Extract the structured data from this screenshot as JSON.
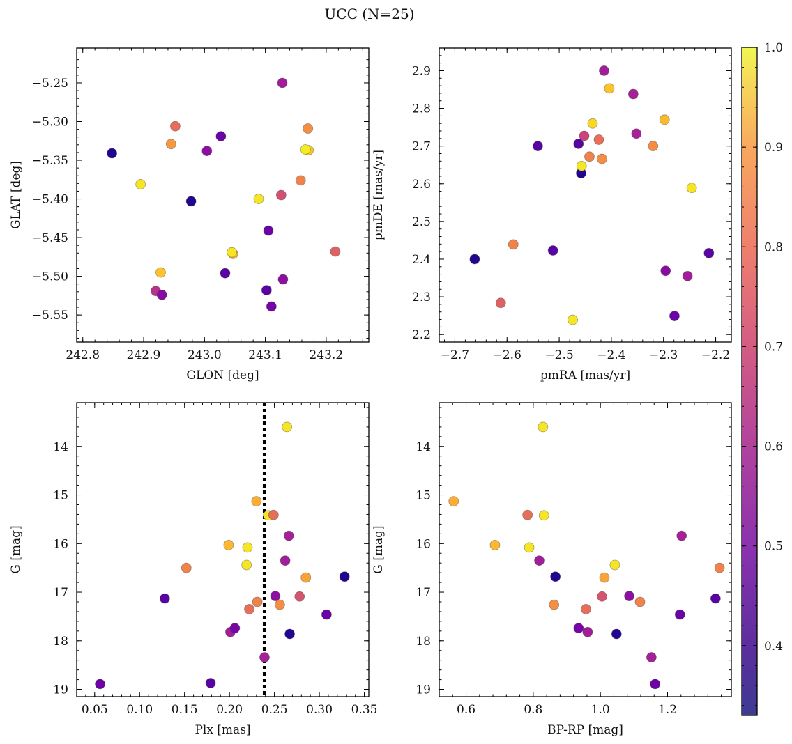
{
  "figure": {
    "title": "UCC (N=25)",
    "colorbar": {
      "colormap": "plasma",
      "range": [
        0.33,
        1.0
      ],
      "ticks": [
        0.4,
        0.5,
        0.6,
        0.7,
        0.8,
        0.9,
        1.0
      ],
      "tick_labels": [
        "0.4",
        "0.5",
        "0.6",
        "0.7",
        "0.8",
        "0.9",
        "1.0"
      ]
    }
  },
  "chart_data": [
    {
      "type": "scatter",
      "xlabel": "GLON [deg]",
      "ylabel": "GLAT [deg]",
      "xlim": [
        242.79,
        243.27
      ],
      "ylim": [
        -5.585,
        -5.205
      ],
      "y_inverted": false,
      "xticks": [
        242.8,
        242.9,
        243.0,
        243.1,
        243.2
      ],
      "xtick_labels": [
        "242.8",
        "242.9",
        "243.0",
        "243.1",
        "243.2"
      ],
      "yticks": [
        -5.25,
        -5.3,
        -5.35,
        -5.4,
        -5.45,
        -5.5,
        -5.55
      ],
      "ytick_labels": [
        "−5.25",
        "−5.30",
        "−5.35",
        "−5.40",
        "−5.45",
        "−5.50",
        "−5.55"
      ],
      "points": [
        {
          "x": 242.848,
          "y": -5.341,
          "c": 0.36
        },
        {
          "x": 242.895,
          "y": -5.381,
          "c": 0.97
        },
        {
          "x": 242.945,
          "y": -5.329,
          "c": 0.84
        },
        {
          "x": 242.952,
          "y": -5.306,
          "c": 0.76
        },
        {
          "x": 242.928,
          "y": -5.495,
          "c": 0.92
        },
        {
          "x": 242.92,
          "y": -5.519,
          "c": 0.62
        },
        {
          "x": 242.93,
          "y": -5.524,
          "c": 0.52
        },
        {
          "x": 242.978,
          "y": -5.403,
          "c": 0.36
        },
        {
          "x": 243.004,
          "y": -5.338,
          "c": 0.53
        },
        {
          "x": 243.027,
          "y": -5.319,
          "c": 0.47
        },
        {
          "x": 243.034,
          "y": -5.496,
          "c": 0.44
        },
        {
          "x": 243.047,
          "y": -5.471,
          "c": 0.88
        },
        {
          "x": 243.045,
          "y": -5.469,
          "c": 0.97
        },
        {
          "x": 243.089,
          "y": -5.4,
          "c": 0.97
        },
        {
          "x": 243.105,
          "y": -5.441,
          "c": 0.47
        },
        {
          "x": 243.102,
          "y": -5.518,
          "c": 0.44
        },
        {
          "x": 243.11,
          "y": -5.539,
          "c": 0.49
        },
        {
          "x": 243.128,
          "y": -5.25,
          "c": 0.57
        },
        {
          "x": 243.126,
          "y": -5.395,
          "c": 0.69
        },
        {
          "x": 243.129,
          "y": -5.504,
          "c": 0.53
        },
        {
          "x": 243.158,
          "y": -5.376,
          "c": 0.8
        },
        {
          "x": 243.17,
          "y": -5.309,
          "c": 0.82
        },
        {
          "x": 243.171,
          "y": -5.337,
          "c": 0.92
        },
        {
          "x": 243.166,
          "y": -5.336,
          "c": 0.98
        },
        {
          "x": 243.215,
          "y": -5.468,
          "c": 0.73
        }
      ]
    },
    {
      "type": "scatter",
      "xlabel": "pmRA [mas/yr]",
      "ylabel": "pmDE [mas/yr]",
      "xlim": [
        -2.73,
        -2.17
      ],
      "ylim": [
        2.18,
        2.96
      ],
      "y_inverted": false,
      "xticks": [
        -2.7,
        -2.6,
        -2.5,
        -2.4,
        -2.3,
        -2.2
      ],
      "xtick_labels": [
        "−2.7",
        "−2.6",
        "−2.5",
        "−2.4",
        "−2.3",
        "−2.2"
      ],
      "yticks": [
        2.2,
        2.3,
        2.4,
        2.5,
        2.6,
        2.7,
        2.8,
        2.9
      ],
      "ytick_labels": [
        "2.2",
        "2.3",
        "2.4",
        "2.5",
        "2.6",
        "2.7",
        "2.8",
        "2.9"
      ],
      "points": [
        {
          "x": -2.662,
          "y": 2.4,
          "c": 0.36
        },
        {
          "x": -2.612,
          "y": 2.284,
          "c": 0.73
        },
        {
          "x": -2.588,
          "y": 2.439,
          "c": 0.8
        },
        {
          "x": -2.541,
          "y": 2.7,
          "c": 0.44
        },
        {
          "x": -2.512,
          "y": 2.423,
          "c": 0.44
        },
        {
          "x": -2.474,
          "y": 2.239,
          "c": 0.97
        },
        {
          "x": -2.463,
          "y": 2.706,
          "c": 0.44
        },
        {
          "x": -2.458,
          "y": 2.628,
          "c": 0.36
        },
        {
          "x": -2.457,
          "y": 2.647,
          "c": 0.97
        },
        {
          "x": -2.452,
          "y": 2.727,
          "c": 0.66
        },
        {
          "x": -2.442,
          "y": 2.672,
          "c": 0.8
        },
        {
          "x": -2.436,
          "y": 2.76,
          "c": 0.95
        },
        {
          "x": -2.424,
          "y": 2.717,
          "c": 0.76
        },
        {
          "x": -2.418,
          "y": 2.666,
          "c": 0.82
        },
        {
          "x": -2.414,
          "y": 2.9,
          "c": 0.57
        },
        {
          "x": -2.404,
          "y": 2.853,
          "c": 0.92
        },
        {
          "x": -2.358,
          "y": 2.838,
          "c": 0.58
        },
        {
          "x": -2.352,
          "y": 2.733,
          "c": 0.58
        },
        {
          "x": -2.32,
          "y": 2.7,
          "c": 0.82
        },
        {
          "x": -2.298,
          "y": 2.77,
          "c": 0.9
        },
        {
          "x": -2.296,
          "y": 2.369,
          "c": 0.52
        },
        {
          "x": -2.279,
          "y": 2.249,
          "c": 0.47
        },
        {
          "x": -2.254,
          "y": 2.355,
          "c": 0.57
        },
        {
          "x": -2.246,
          "y": 2.589,
          "c": 0.97
        },
        {
          "x": -2.213,
          "y": 2.416,
          "c": 0.44
        }
      ]
    },
    {
      "type": "scatter",
      "xlabel": "Plx [mas]",
      "ylabel": "G [mag]",
      "xlim": [
        0.03,
        0.355
      ],
      "ylim": [
        13.1,
        19.15
      ],
      "y_inverted": true,
      "reference_line": {
        "x": 0.239,
        "style": "dotted"
      },
      "xticks": [
        0.05,
        0.1,
        0.15,
        0.2,
        0.25,
        0.3,
        0.35
      ],
      "xtick_labels": [
        "0.05",
        "0.10",
        "0.15",
        "0.20",
        "0.25",
        "0.30",
        "0.35"
      ],
      "yticks": [
        14,
        15,
        16,
        17,
        18,
        19
      ],
      "ytick_labels": [
        "14",
        "15",
        "16",
        "17",
        "18",
        "19"
      ],
      "points": [
        {
          "x": 0.056,
          "y": 18.89,
          "c": 0.47
        },
        {
          "x": 0.128,
          "y": 17.13,
          "c": 0.44
        },
        {
          "x": 0.152,
          "y": 16.5,
          "c": 0.8
        },
        {
          "x": 0.179,
          "y": 18.87,
          "c": 0.44
        },
        {
          "x": 0.199,
          "y": 16.03,
          "c": 0.9
        },
        {
          "x": 0.201,
          "y": 17.82,
          "c": 0.57
        },
        {
          "x": 0.206,
          "y": 17.74,
          "c": 0.49
        },
        {
          "x": 0.219,
          "y": 16.44,
          "c": 0.97
        },
        {
          "x": 0.22,
          "y": 16.08,
          "c": 0.97
        },
        {
          "x": 0.222,
          "y": 17.35,
          "c": 0.76
        },
        {
          "x": 0.23,
          "y": 15.13,
          "c": 0.88
        },
        {
          "x": 0.231,
          "y": 17.2,
          "c": 0.8
        },
        {
          "x": 0.239,
          "y": 18.34,
          "c": 0.58
        },
        {
          "x": 0.243,
          "y": 15.42,
          "c": 0.97
        },
        {
          "x": 0.249,
          "y": 15.41,
          "c": 0.76
        },
        {
          "x": 0.251,
          "y": 17.08,
          "c": 0.53
        },
        {
          "x": 0.256,
          "y": 17.26,
          "c": 0.82
        },
        {
          "x": 0.262,
          "y": 16.35,
          "c": 0.57
        },
        {
          "x": 0.264,
          "y": 13.6,
          "c": 0.97
        },
        {
          "x": 0.266,
          "y": 15.84,
          "c": 0.58
        },
        {
          "x": 0.267,
          "y": 17.86,
          "c": 0.36
        },
        {
          "x": 0.278,
          "y": 17.09,
          "c": 0.7
        },
        {
          "x": 0.285,
          "y": 16.7,
          "c": 0.86
        },
        {
          "x": 0.308,
          "y": 17.46,
          "c": 0.47
        },
        {
          "x": 0.328,
          "y": 16.68,
          "c": 0.36
        }
      ]
    },
    {
      "type": "scatter",
      "xlabel": "BP-RP [mag]",
      "ylabel": "G [mag]",
      "xlim": [
        0.52,
        1.39
      ],
      "ylim": [
        13.1,
        19.15
      ],
      "y_inverted": true,
      "xticks": [
        0.6,
        0.8,
        1.0,
        1.2
      ],
      "xtick_labels": [
        "0.6",
        "0.8",
        "1.0",
        "1.2"
      ],
      "yticks": [
        14,
        15,
        16,
        17,
        18,
        19
      ],
      "ytick_labels": [
        "14",
        "15",
        "16",
        "17",
        "18",
        "19"
      ],
      "points": [
        {
          "x": 0.563,
          "y": 15.13,
          "c": 0.88
        },
        {
          "x": 0.686,
          "y": 16.03,
          "c": 0.9
        },
        {
          "x": 0.783,
          "y": 15.41,
          "c": 0.76
        },
        {
          "x": 0.788,
          "y": 16.08,
          "c": 0.97
        },
        {
          "x": 0.818,
          "y": 16.35,
          "c": 0.57
        },
        {
          "x": 0.829,
          "y": 13.6,
          "c": 0.97
        },
        {
          "x": 0.832,
          "y": 15.42,
          "c": 0.97
        },
        {
          "x": 0.862,
          "y": 17.26,
          "c": 0.82
        },
        {
          "x": 0.866,
          "y": 16.68,
          "c": 0.36
        },
        {
          "x": 0.935,
          "y": 17.74,
          "c": 0.49
        },
        {
          "x": 0.957,
          "y": 17.35,
          "c": 0.76
        },
        {
          "x": 0.962,
          "y": 17.82,
          "c": 0.57
        },
        {
          "x": 1.005,
          "y": 17.09,
          "c": 0.7
        },
        {
          "x": 1.012,
          "y": 16.7,
          "c": 0.86
        },
        {
          "x": 1.043,
          "y": 16.44,
          "c": 0.97
        },
        {
          "x": 1.048,
          "y": 17.86,
          "c": 0.36
        },
        {
          "x": 1.086,
          "y": 17.08,
          "c": 0.53
        },
        {
          "x": 1.118,
          "y": 17.2,
          "c": 0.8
        },
        {
          "x": 1.152,
          "y": 18.34,
          "c": 0.58
        },
        {
          "x": 1.163,
          "y": 18.89,
          "c": 0.47
        },
        {
          "x": 1.237,
          "y": 17.46,
          "c": 0.47
        },
        {
          "x": 1.242,
          "y": 15.84,
          "c": 0.58
        },
        {
          "x": 1.343,
          "y": 17.13,
          "c": 0.44
        },
        {
          "x": 1.355,
          "y": 16.5,
          "c": 0.8
        }
      ]
    }
  ]
}
